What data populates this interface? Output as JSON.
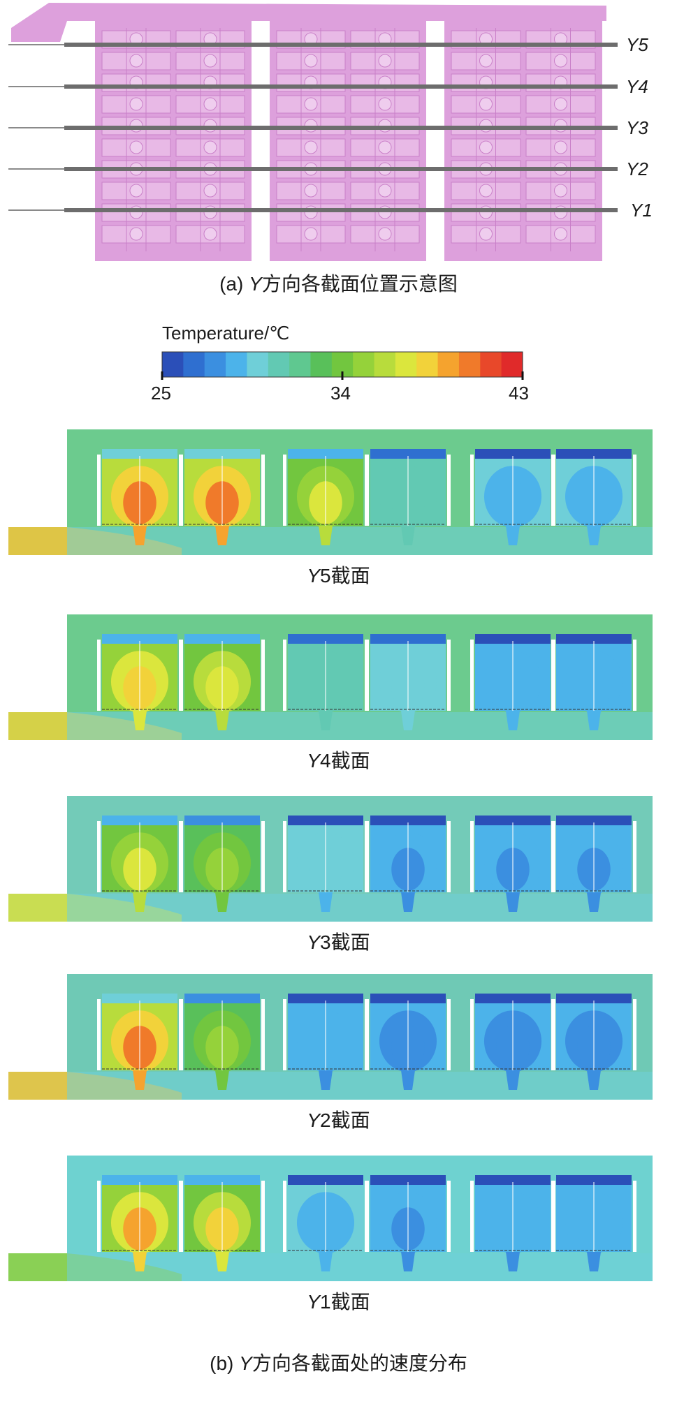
{
  "figure_a": {
    "caption_prefix": "(a) ",
    "caption_italic": "Y",
    "caption_rest": "方向各截面位置示意图",
    "lines": [
      {
        "label": "Y5"
      },
      {
        "label": "Y4"
      },
      {
        "label": "Y3"
      },
      {
        "label": "Y2"
      },
      {
        "label": "Y1"
      }
    ],
    "colors": {
      "body": "#dda0dc",
      "body_dark": "#c97fc8",
      "cell": "#e8b9e6",
      "line": "#6d6d6d"
    }
  },
  "colorbar": {
    "title": "Temperature/℃",
    "tick_values": [
      "25",
      "34",
      "43"
    ],
    "min": 25,
    "max": 43,
    "colors": [
      "#2b4fb8",
      "#2f6fd0",
      "#3b8fe0",
      "#4cb3ea",
      "#6fcfd8",
      "#62c9b3",
      "#5fc890",
      "#59c05a",
      "#72c63f",
      "#95d23a",
      "#b8dc3c",
      "#dbe63d",
      "#f2d23a",
      "#f5a32e",
      "#f07a2a",
      "#e8482a",
      "#e02a2a"
    ]
  },
  "sections": [
    {
      "label_italic": "Y",
      "label_rest": "5截面",
      "hot_cells": [
        0.95,
        0.92,
        0.72,
        0.35,
        0.22,
        0.22
      ],
      "background": "#6ccb8e",
      "inlet": "#f2c43a"
    },
    {
      "label_italic": "Y",
      "label_rest": "4截面",
      "hot_cells": [
        0.82,
        0.75,
        0.35,
        0.28,
        0.2,
        0.2
      ],
      "background": "#6ccb8e",
      "inlet": "#e8d23c"
    },
    {
      "label_italic": "Y",
      "label_rest": "3截面",
      "hot_cells": [
        0.72,
        0.62,
        0.25,
        0.15,
        0.15,
        0.15
      ],
      "background": "#73cbb8",
      "inlet": "#d8e040"
    },
    {
      "label_italic": "Y",
      "label_rest": "2截面",
      "hot_cells": [
        0.95,
        0.58,
        0.18,
        0.12,
        0.12,
        0.12
      ],
      "background": "#6fc9b5",
      "inlet": "#f2c43a"
    },
    {
      "label_italic": "Y",
      "label_rest": "1截面",
      "hot_cells": [
        0.88,
        0.78,
        0.22,
        0.15,
        0.18,
        0.18
      ],
      "background": "#6ed2d0",
      "inlet": "#8fd040"
    }
  ],
  "caption_b": {
    "prefix": "(b) ",
    "italic": "Y",
    "rest": "方向各截面处的速度分布"
  }
}
